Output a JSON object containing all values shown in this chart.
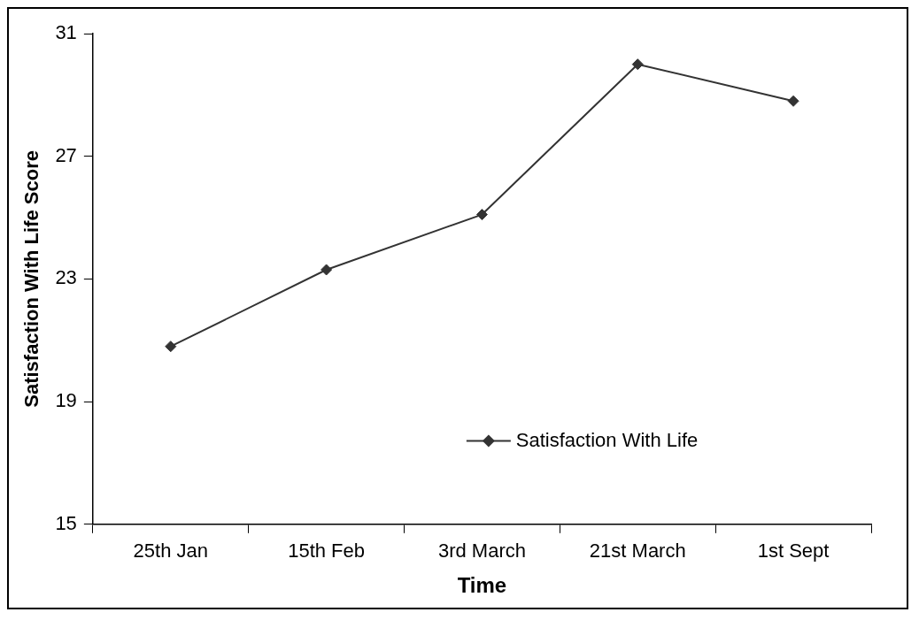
{
  "chart_data": {
    "type": "line",
    "xlabel": "Time",
    "ylabel": "Satisfaction With Life Score",
    "categories": [
      "25th Jan",
      "15th Feb",
      "3rd March",
      "21st March",
      "1st Sept"
    ],
    "series": [
      {
        "name": "Satisfaction With Life",
        "color": "#333333",
        "values": [
          20.8,
          23.3,
          25.1,
          30.0,
          28.8
        ]
      }
    ],
    "ylim": [
      15,
      31
    ],
    "yticks": [
      15,
      19,
      23,
      27,
      31
    ],
    "grid": false,
    "legend": "bottom right",
    "marker": "diamond",
    "line_style": "solid"
  }
}
